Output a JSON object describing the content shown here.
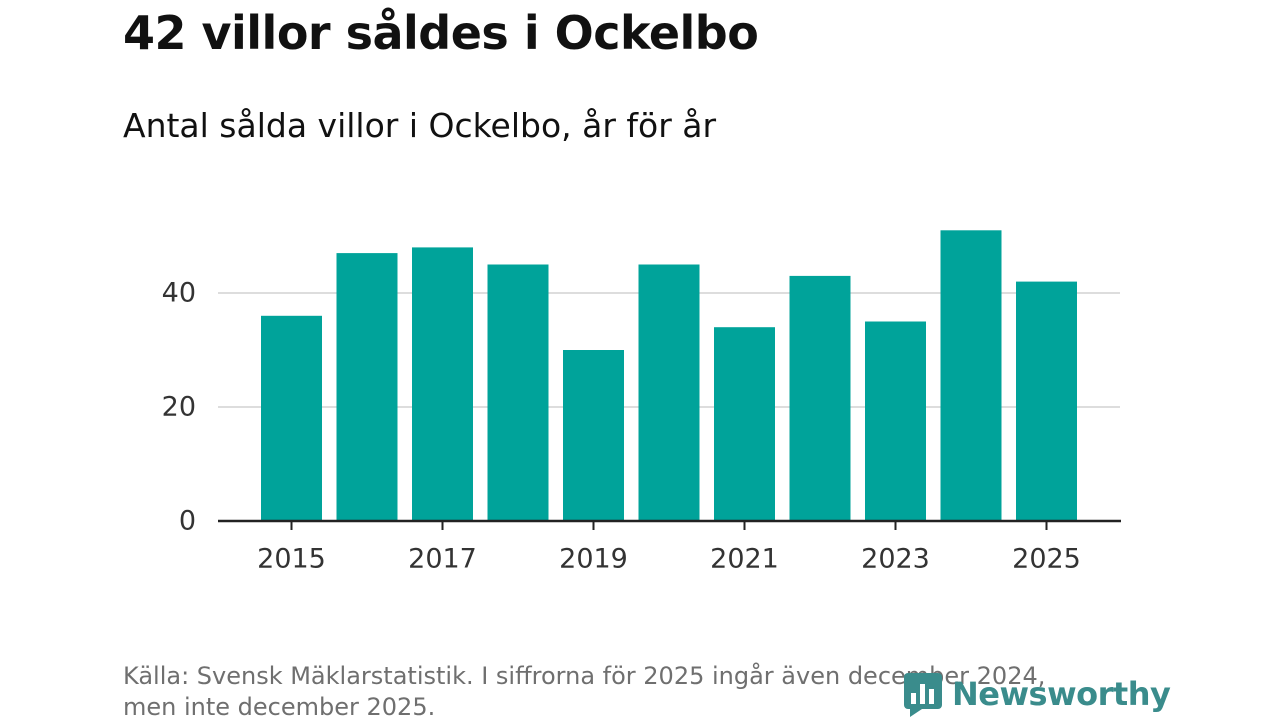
{
  "header": {
    "title": "42 villor såldes i Ockelbo",
    "subtitle": "Antal sålda villor i Ockelbo, år för år"
  },
  "footer": {
    "source": "Källa: Svensk Mäklarstatistik. I siffrorna för 2025 ingår även december 2024, men inte december 2025.",
    "brand": "Newsworthy"
  },
  "colors": {
    "bar": "#00a39a",
    "grid": "#dddddd",
    "axis": "#222222",
    "brand": "#3a8c8c"
  },
  "chart_data": {
    "type": "bar",
    "title": "Antal sålda villor i Ockelbo, år för år",
    "xlabel": "",
    "ylabel": "",
    "categories": [
      "2015",
      "2016",
      "2017",
      "2018",
      "2019",
      "2020",
      "2021",
      "2022",
      "2023",
      "2024",
      "2025"
    ],
    "values": [
      36,
      47,
      48,
      45,
      30,
      45,
      34,
      43,
      35,
      51,
      42
    ],
    "ylim": [
      0,
      52
    ],
    "yticks": [
      0,
      20,
      40
    ],
    "xticks": [
      "2015",
      "2017",
      "2019",
      "2021",
      "2023",
      "2025"
    ],
    "grid": true
  }
}
